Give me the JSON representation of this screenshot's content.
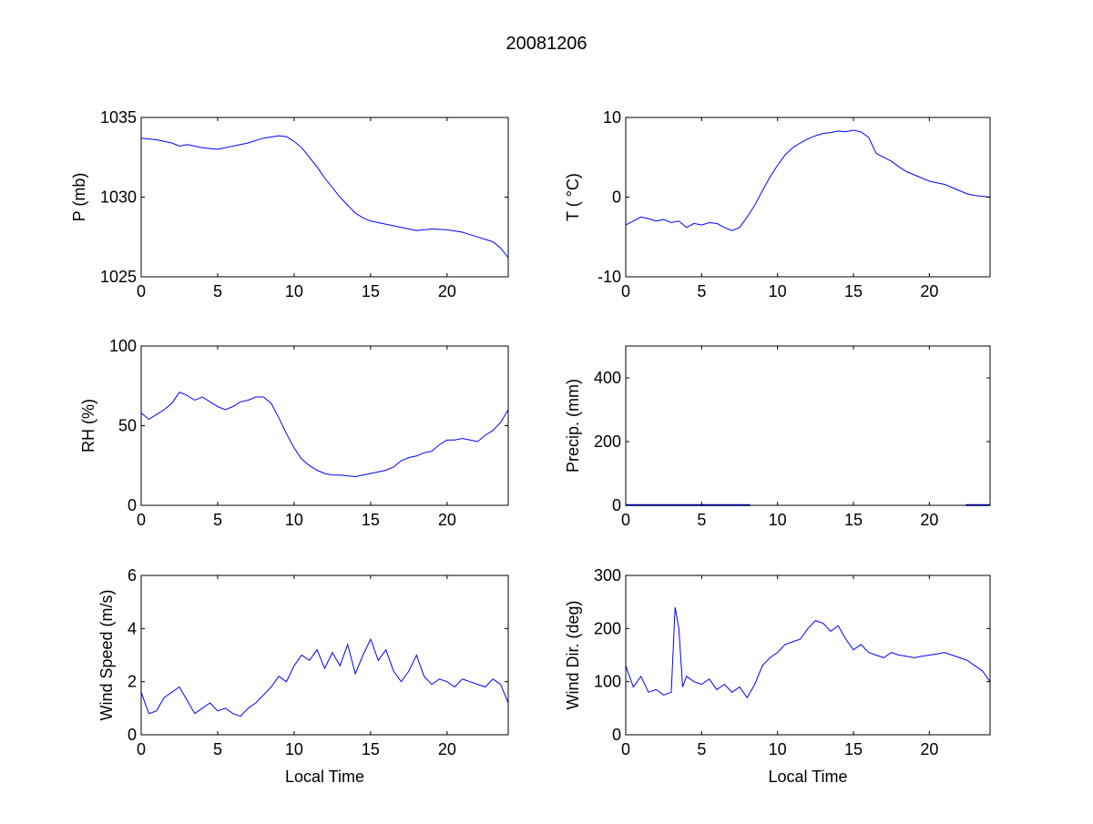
{
  "figure": {
    "title": "20081206",
    "line_color": "#0000ff"
  },
  "chart_data": [
    {
      "type": "line",
      "ylabel": "P (mb)",
      "xlabel": "",
      "xlim": [
        0,
        24
      ],
      "ylim": [
        1025,
        1035
      ],
      "xticks": [
        0,
        5,
        10,
        15,
        20
      ],
      "yticks": [
        1025,
        1030,
        1035
      ],
      "grid": false,
      "series": [
        {
          "x": [
            0,
            1,
            2,
            2.5,
            3,
            4,
            5,
            6,
            7,
            8,
            9,
            9.5,
            10,
            10.5,
            11,
            11.5,
            12,
            12.5,
            13,
            13.5,
            14,
            14.5,
            15,
            16,
            17,
            18,
            19,
            20,
            21,
            22,
            23,
            23.5,
            24
          ],
          "y": [
            1033.7,
            1033.6,
            1033.4,
            1033.2,
            1033.3,
            1033.1,
            1033.0,
            1033.2,
            1033.4,
            1033.7,
            1033.85,
            1033.8,
            1033.5,
            1033.1,
            1032.5,
            1031.9,
            1031.2,
            1030.6,
            1030.0,
            1029.5,
            1029.0,
            1028.7,
            1028.5,
            1028.3,
            1028.1,
            1027.9,
            1028.0,
            1027.95,
            1027.8,
            1027.5,
            1027.2,
            1026.8,
            1026.2
          ]
        }
      ]
    },
    {
      "type": "line",
      "ylabel": "T ( °C)",
      "xlabel": "",
      "xlim": [
        0,
        24
      ],
      "ylim": [
        -10,
        10
      ],
      "xticks": [
        0,
        5,
        10,
        15,
        20
      ],
      "yticks": [
        -10,
        0,
        10
      ],
      "grid": false,
      "series": [
        {
          "x": [
            0,
            0.5,
            1,
            1.5,
            2,
            2.5,
            3,
            3.5,
            4,
            4.5,
            5,
            5.5,
            6,
            6.5,
            7,
            7.5,
            8,
            8.5,
            9,
            9.5,
            10,
            10.5,
            11,
            11.5,
            12,
            12.5,
            13,
            13.5,
            14,
            14.5,
            15,
            15.5,
            16,
            16.5,
            17,
            17.5,
            18,
            18.5,
            19,
            19.5,
            20,
            20.5,
            21,
            21.5,
            22,
            22.5,
            23,
            23.5,
            24
          ],
          "y": [
            -3.5,
            -3.0,
            -2.5,
            -2.7,
            -3.0,
            -2.8,
            -3.2,
            -3.0,
            -3.8,
            -3.3,
            -3.5,
            -3.2,
            -3.3,
            -3.8,
            -4.2,
            -3.8,
            -2.5,
            -1.0,
            0.8,
            2.5,
            4.0,
            5.3,
            6.2,
            6.8,
            7.3,
            7.7,
            8.0,
            8.1,
            8.3,
            8.2,
            8.4,
            8.2,
            7.5,
            5.5,
            5.0,
            4.5,
            3.8,
            3.2,
            2.8,
            2.4,
            2.0,
            1.8,
            1.6,
            1.2,
            0.8,
            0.4,
            0.2,
            0.1,
            0.0
          ]
        }
      ]
    },
    {
      "type": "line",
      "ylabel": "RH (%)",
      "xlabel": "",
      "xlim": [
        0,
        24
      ],
      "ylim": [
        0,
        100
      ],
      "xticks": [
        0,
        5,
        10,
        15,
        20
      ],
      "yticks": [
        0,
        50,
        100
      ],
      "grid": false,
      "series": [
        {
          "x": [
            0,
            0.5,
            1,
            1.5,
            2,
            2.5,
            3,
            3.5,
            4,
            4.5,
            5,
            5.5,
            6,
            6.5,
            7,
            7.5,
            8,
            8.5,
            9,
            9.5,
            10,
            10.5,
            11,
            11.5,
            12,
            12.5,
            13,
            13.5,
            14,
            14.5,
            15,
            15.5,
            16,
            16.5,
            17,
            17.5,
            18,
            18.5,
            19,
            19.5,
            20,
            20.5,
            21,
            21.5,
            22,
            22.5,
            23,
            23.5,
            24
          ],
          "y": [
            58,
            54,
            57,
            60,
            64,
            71,
            69,
            66,
            68,
            65,
            62,
            60,
            62,
            65,
            66,
            68,
            68,
            64,
            55,
            45,
            36,
            29,
            25,
            22,
            20,
            19,
            19,
            18.5,
            18,
            19,
            20,
            21,
            22,
            24,
            28,
            30,
            31,
            33,
            34,
            38,
            41,
            41,
            42,
            41,
            40,
            44,
            47,
            52,
            60
          ]
        }
      ]
    },
    {
      "type": "line",
      "ylabel": "Precip. (mm)",
      "xlabel": "",
      "xlim": [
        0,
        24
      ],
      "ylim": [
        0,
        500
      ],
      "xticks": [
        0,
        5,
        10,
        15,
        20
      ],
      "yticks": [
        0,
        200,
        400
      ],
      "grid": false,
      "series": [
        {
          "x": [
            0,
            8.2
          ],
          "y": [
            0.5,
            0.5
          ]
        },
        {
          "x": [
            22.4,
            24
          ],
          "y": [
            0.5,
            0.5
          ]
        }
      ]
    },
    {
      "type": "line",
      "ylabel": "Wind Speed (m/s)",
      "xlabel": "Local Time",
      "xlim": [
        0,
        24
      ],
      "ylim": [
        0,
        6
      ],
      "xticks": [
        0,
        5,
        10,
        15,
        20
      ],
      "yticks": [
        0,
        2,
        4,
        6
      ],
      "grid": false,
      "series": [
        {
          "x": [
            0,
            0.5,
            1,
            1.5,
            2,
            2.5,
            3,
            3.5,
            4,
            4.5,
            5,
            5.5,
            6,
            6.5,
            7,
            7.5,
            8,
            8.5,
            9,
            9.5,
            10,
            10.5,
            11,
            11.5,
            12,
            12.5,
            13,
            13.5,
            14,
            14.5,
            15,
            15.5,
            16,
            16.5,
            17,
            17.5,
            18,
            18.5,
            19,
            19.5,
            20,
            20.5,
            21,
            21.5,
            22,
            22.5,
            23,
            23.5,
            24
          ],
          "y": [
            1.6,
            0.8,
            0.9,
            1.4,
            1.6,
            1.8,
            1.3,
            0.8,
            1.0,
            1.2,
            0.9,
            1.0,
            0.8,
            0.7,
            1.0,
            1.2,
            1.5,
            1.8,
            2.2,
            2.0,
            2.6,
            3.0,
            2.8,
            3.2,
            2.5,
            3.1,
            2.6,
            3.4,
            2.3,
            3.0,
            3.6,
            2.8,
            3.2,
            2.4,
            2.0,
            2.4,
            3.0,
            2.2,
            1.9,
            2.1,
            2.0,
            1.8,
            2.1,
            2.0,
            1.9,
            1.8,
            2.1,
            1.9,
            1.2
          ]
        }
      ]
    },
    {
      "type": "line",
      "ylabel": "Wind Dir. (deg)",
      "xlabel": "Local Time",
      "xlim": [
        0,
        24
      ],
      "ylim": [
        0,
        300
      ],
      "xticks": [
        0,
        5,
        10,
        15,
        20
      ],
      "yticks": [
        0,
        100,
        200,
        300
      ],
      "grid": false,
      "series": [
        {
          "x": [
            0,
            0.5,
            1,
            1.5,
            2,
            2.5,
            3,
            3.25,
            3.5,
            3.75,
            4,
            4.5,
            5,
            5.5,
            6,
            6.5,
            7,
            7.5,
            8,
            8.5,
            9,
            9.5,
            10,
            10.5,
            11,
            11.5,
            12,
            12.5,
            13,
            13.5,
            14,
            14.5,
            15,
            15.5,
            16,
            16.5,
            17,
            17.5,
            18,
            18.5,
            19,
            19.5,
            20,
            20.5,
            21,
            21.5,
            22,
            22.5,
            23,
            23.5,
            24
          ],
          "y": [
            130,
            90,
            110,
            80,
            85,
            75,
            80,
            240,
            200,
            90,
            110,
            100,
            95,
            105,
            85,
            95,
            80,
            90,
            70,
            95,
            130,
            145,
            155,
            170,
            175,
            180,
            200,
            215,
            210,
            195,
            205,
            180,
            160,
            170,
            155,
            150,
            145,
            155,
            150,
            148,
            145,
            148,
            150,
            152,
            155,
            150,
            145,
            140,
            130,
            120,
            100
          ]
        }
      ]
    }
  ]
}
